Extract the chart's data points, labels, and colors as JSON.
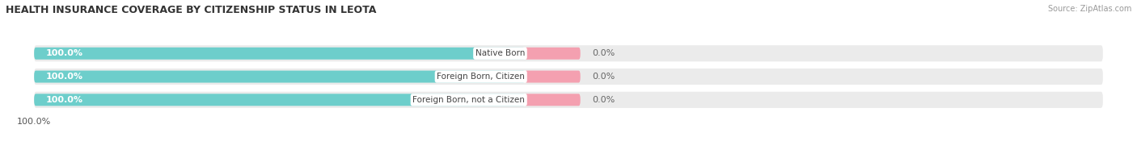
{
  "title": "HEALTH INSURANCE COVERAGE BY CITIZENSHIP STATUS IN LEOTA",
  "source": "Source: ZipAtlas.com",
  "categories": [
    "Native Born",
    "Foreign Born, Citizen",
    "Foreign Born, not a Citizen"
  ],
  "with_coverage": [
    100.0,
    100.0,
    100.0
  ],
  "without_coverage": [
    0.0,
    0.0,
    0.0
  ],
  "color_with": "#6dcecb",
  "color_without": "#f4a0b0",
  "title_fontsize": 9,
  "label_fontsize": 8,
  "tick_fontsize": 8,
  "x_left_label": "100.0%",
  "background_color": "#ffffff",
  "row_bg_color": "#e8e8e8",
  "bar_bg_light": "#f0f0f0"
}
